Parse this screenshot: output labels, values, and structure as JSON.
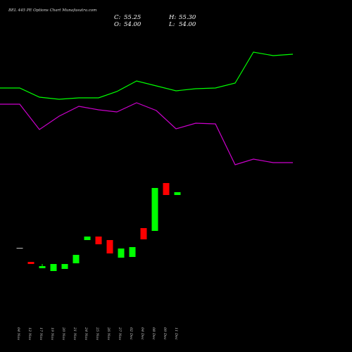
{
  "chart_data": {
    "type": "candlestick",
    "title": "BEL 445 PE Options Chart Munafasutra.com",
    "ohlc": {
      "close_label": "C:",
      "close": "55.25",
      "high_label": "H:",
      "high": "55.30",
      "open_label": "O:",
      "open": "54.00",
      "low_label": "L:",
      "low": "54.00"
    },
    "price_range": [
      0,
      1000
    ],
    "categories": [
      "04 Nov",
      "12 Nov",
      "17 Nov",
      "19 Nov",
      "20 Nov",
      "21 Nov",
      "24 Nov",
      "25 Nov",
      "26 Nov",
      "27 Nov",
      "02 Dec",
      "04 Dec",
      "08 Dec",
      "09 Dec",
      "11 Dec"
    ],
    "candles": [
      {
        "open": 148,
        "close": 148,
        "high": 148,
        "low": 148
      },
      {
        "open": 128,
        "close": 125,
        "high": 128,
        "low": 125
      },
      {
        "open": 119,
        "close": 122,
        "high": 125,
        "low": 119
      },
      {
        "open": 115,
        "close": 125,
        "high": 125,
        "low": 115
      },
      {
        "open": 118,
        "close": 125,
        "high": 125,
        "low": 118
      },
      {
        "open": 126,
        "close": 138,
        "high": 138,
        "low": 126
      },
      {
        "open": 159,
        "close": 164,
        "high": 164,
        "low": 159
      },
      {
        "open": 164,
        "close": 153,
        "high": 164,
        "low": 153
      },
      {
        "open": 159,
        "close": 140,
        "high": 159,
        "low": 140
      },
      {
        "open": 134,
        "close": 147,
        "high": 147,
        "low": 134
      },
      {
        "open": 135,
        "close": 149,
        "high": 149,
        "low": 135
      },
      {
        "open": 176,
        "close": 160,
        "high": 176,
        "low": 160
      },
      {
        "open": 172,
        "close": 233,
        "high": 233,
        "low": 172
      },
      {
        "open": 240,
        "close": 223,
        "high": 240,
        "low": 223
      },
      {
        "open": 223,
        "close": 227,
        "high": 227,
        "low": 223
      }
    ],
    "lines": [
      {
        "color": "#00ff00",
        "points": [
          [
            0,
            375
          ],
          [
            28,
            375
          ],
          [
            56,
            362
          ],
          [
            84,
            359
          ],
          [
            112,
            361
          ],
          [
            140,
            361
          ],
          [
            166,
            370
          ],
          [
            194,
            385
          ],
          [
            222,
            378
          ],
          [
            250,
            371
          ],
          [
            278,
            374
          ],
          [
            306,
            375
          ],
          [
            334,
            382
          ],
          [
            360,
            426
          ],
          [
            388,
            421
          ],
          [
            416,
            423
          ]
        ]
      },
      {
        "color": "#cc00cc",
        "points": [
          [
            0,
            352
          ],
          [
            28,
            352
          ],
          [
            56,
            316
          ],
          [
            84,
            335
          ],
          [
            112,
            349
          ],
          [
            140,
            344
          ],
          [
            166,
            341
          ],
          [
            194,
            354
          ],
          [
            222,
            343
          ],
          [
            250,
            317
          ],
          [
            278,
            325
          ],
          [
            306,
            324
          ],
          [
            334,
            266
          ],
          [
            360,
            274
          ],
          [
            388,
            269
          ],
          [
            416,
            269
          ]
        ]
      }
    ],
    "colors": {
      "up": "#00ff00",
      "down": "#ff0000",
      "background": "#000000",
      "text": "#ffffff"
    }
  }
}
